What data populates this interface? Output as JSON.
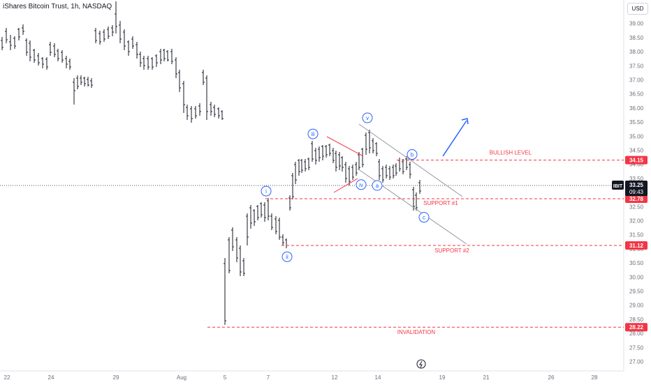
{
  "header": {
    "title": "iShares Bitcoin Trust, 1h, NASDAQ",
    "currency": "USD"
  },
  "chart_data": {
    "type": "candlestick",
    "symbol": "IBIT",
    "ylim": [
      26.75,
      39.55
    ],
    "y_ticks": [
      "27.00",
      "27.50",
      "28.00",
      "28.50",
      "29.00",
      "29.50",
      "30.00",
      "30.50",
      "31.00",
      "31.50",
      "32.00",
      "32.50",
      "33.00",
      "33.50",
      "34.00",
      "34.50",
      "35.00",
      "35.50",
      "36.00",
      "36.50",
      "37.00",
      "37.50",
      "38.00",
      "38.50",
      "39.00"
    ],
    "x_ticks": [
      "22",
      "24",
      "29",
      "Aug",
      "5",
      "7",
      "12",
      "14",
      "19",
      "21",
      "26",
      "28"
    ],
    "last_price": {
      "symbol": "IBIT",
      "value": "33.25",
      "countdown": "09:43"
    },
    "levels": [
      {
        "label": "BULLISH LEVEL",
        "value": 34.15,
        "tag": "34.15"
      },
      {
        "label": "SUPPORT #1",
        "value": 32.78,
        "tag": "32.78"
      },
      {
        "label": "SUPPORT #2",
        "value": 31.12,
        "tag": "31.12"
      },
      {
        "label": "INVALIDATION",
        "value": 28.22,
        "tag": "28.22"
      }
    ],
    "wave_labels": [
      {
        "label": "i",
        "value": 33.05
      },
      {
        "label": "ii",
        "value": 30.72
      },
      {
        "label": "iii",
        "value": 35.08
      },
      {
        "label": "iv",
        "value": 33.28
      },
      {
        "label": "v",
        "value": 35.65
      },
      {
        "label": "a",
        "value": 33.25
      },
      {
        "label": "b",
        "value": 34.35
      },
      {
        "label": "c",
        "value": 32.12
      }
    ],
    "colors": {
      "level": "#f23645",
      "wave": "#2962ff",
      "candle": "#131722",
      "channel": "#9598a1",
      "arrow": "#2962ff"
    }
  }
}
